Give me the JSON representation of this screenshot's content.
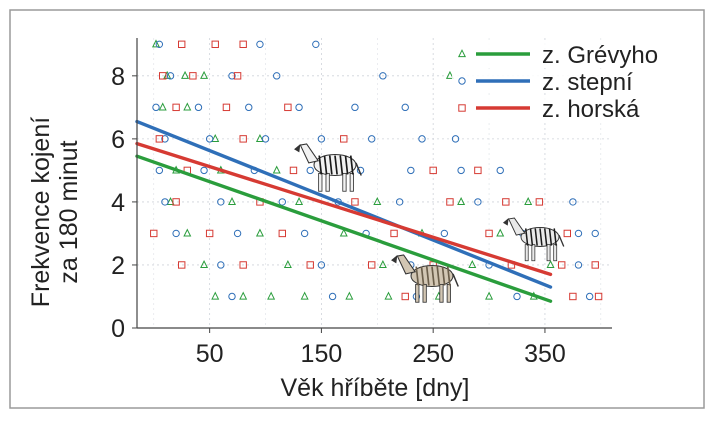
{
  "chart_data": {
    "type": "scatter",
    "title": "",
    "xlabel": "Věk hříběte [dny]",
    "ylabel_lines": [
      "Frekvence kojení",
      "za 180 minut"
    ],
    "xlim": [
      -15,
      410
    ],
    "ylim": [
      0,
      9.2
    ],
    "x_ticks": [
      50,
      150,
      250,
      350
    ],
    "y_ticks": [
      0,
      2,
      4,
      6,
      8
    ],
    "grid": true,
    "legend_position": "top-right",
    "series": [
      {
        "name": "z. Grévyho",
        "marker": "triangle",
        "color": "#2a9d3c",
        "trend": {
          "x": [
            -15,
            355
          ],
          "y": [
            5.45,
            0.85
          ]
        },
        "points": [
          {
            "x": 2,
            "y": 9
          },
          {
            "x": 12,
            "y": 8
          },
          {
            "x": 28,
            "y": 8
          },
          {
            "x": 45,
            "y": 8
          },
          {
            "x": 8,
            "y": 7
          },
          {
            "x": 30,
            "y": 7
          },
          {
            "x": 55,
            "y": 6
          },
          {
            "x": 95,
            "y": 6
          },
          {
            "x": 20,
            "y": 5
          },
          {
            "x": 60,
            "y": 5
          },
          {
            "x": 110,
            "y": 5
          },
          {
            "x": 160,
            "y": 5
          },
          {
            "x": 15,
            "y": 4
          },
          {
            "x": 70,
            "y": 4
          },
          {
            "x": 130,
            "y": 4
          },
          {
            "x": 200,
            "y": 4
          },
          {
            "x": 275,
            "y": 4
          },
          {
            "x": 335,
            "y": 4
          },
          {
            "x": 30,
            "y": 3
          },
          {
            "x": 95,
            "y": 3
          },
          {
            "x": 170,
            "y": 3
          },
          {
            "x": 240,
            "y": 3
          },
          {
            "x": 310,
            "y": 3
          },
          {
            "x": 45,
            "y": 2
          },
          {
            "x": 120,
            "y": 2
          },
          {
            "x": 205,
            "y": 2
          },
          {
            "x": 285,
            "y": 2
          },
          {
            "x": 355,
            "y": 2
          },
          {
            "x": 55,
            "y": 1
          },
          {
            "x": 80,
            "y": 1
          },
          {
            "x": 105,
            "y": 1
          },
          {
            "x": 135,
            "y": 1
          },
          {
            "x": 175,
            "y": 1
          },
          {
            "x": 210,
            "y": 1
          },
          {
            "x": 255,
            "y": 1
          },
          {
            "x": 300,
            "y": 1
          },
          {
            "x": 340,
            "y": 1
          },
          {
            "x": 265,
            "y": 8
          }
        ]
      },
      {
        "name": "z. stepní",
        "marker": "circle",
        "color": "#2f6fb8",
        "trend": {
          "x": [
            -15,
            355
          ],
          "y": [
            6.55,
            1.3
          ]
        },
        "points": [
          {
            "x": 5,
            "y": 9
          },
          {
            "x": 95,
            "y": 9
          },
          {
            "x": 145,
            "y": 9
          },
          {
            "x": 15,
            "y": 8
          },
          {
            "x": 70,
            "y": 8
          },
          {
            "x": 110,
            "y": 8
          },
          {
            "x": 205,
            "y": 8
          },
          {
            "x": 2,
            "y": 7
          },
          {
            "x": 40,
            "y": 7
          },
          {
            "x": 85,
            "y": 7
          },
          {
            "x": 130,
            "y": 7
          },
          {
            "x": 180,
            "y": 7
          },
          {
            "x": 225,
            "y": 7
          },
          {
            "x": 10,
            "y": 6
          },
          {
            "x": 50,
            "y": 6
          },
          {
            "x": 100,
            "y": 6
          },
          {
            "x": 150,
            "y": 6
          },
          {
            "x": 195,
            "y": 6
          },
          {
            "x": 240,
            "y": 6
          },
          {
            "x": 270,
            "y": 6
          },
          {
            "x": 5,
            "y": 5
          },
          {
            "x": 45,
            "y": 5
          },
          {
            "x": 90,
            "y": 5
          },
          {
            "x": 140,
            "y": 5
          },
          {
            "x": 185,
            "y": 5
          },
          {
            "x": 230,
            "y": 5
          },
          {
            "x": 275,
            "y": 5
          },
          {
            "x": 310,
            "y": 5
          },
          {
            "x": 10,
            "y": 4
          },
          {
            "x": 60,
            "y": 4
          },
          {
            "x": 115,
            "y": 4
          },
          {
            "x": 165,
            "y": 4
          },
          {
            "x": 220,
            "y": 4
          },
          {
            "x": 290,
            "y": 4
          },
          {
            "x": 375,
            "y": 4
          },
          {
            "x": 20,
            "y": 3
          },
          {
            "x": 75,
            "y": 3
          },
          {
            "x": 135,
            "y": 3
          },
          {
            "x": 190,
            "y": 3
          },
          {
            "x": 260,
            "y": 3
          },
          {
            "x": 330,
            "y": 3
          },
          {
            "x": 380,
            "y": 3
          },
          {
            "x": 395,
            "y": 3
          },
          {
            "x": 60,
            "y": 2
          },
          {
            "x": 150,
            "y": 2
          },
          {
            "x": 230,
            "y": 2
          },
          {
            "x": 300,
            "y": 2
          },
          {
            "x": 380,
            "y": 2
          },
          {
            "x": 70,
            "y": 1
          },
          {
            "x": 160,
            "y": 1
          },
          {
            "x": 235,
            "y": 1
          },
          {
            "x": 325,
            "y": 1
          },
          {
            "x": 390,
            "y": 1
          }
        ]
      },
      {
        "name": "z. horská",
        "marker": "square",
        "color": "#d63a33",
        "trend": {
          "x": [
            -15,
            355
          ],
          "y": [
            5.85,
            1.7
          ]
        },
        "points": [
          {
            "x": 25,
            "y": 9
          },
          {
            "x": 55,
            "y": 9
          },
          {
            "x": 80,
            "y": 9
          },
          {
            "x": 8,
            "y": 8
          },
          {
            "x": 35,
            "y": 8
          },
          {
            "x": 75,
            "y": 8
          },
          {
            "x": 20,
            "y": 7
          },
          {
            "x": 65,
            "y": 7
          },
          {
            "x": 120,
            "y": 7
          },
          {
            "x": 5,
            "y": 6
          },
          {
            "x": 80,
            "y": 6
          },
          {
            "x": 170,
            "y": 6
          },
          {
            "x": 30,
            "y": 5
          },
          {
            "x": 125,
            "y": 5
          },
          {
            "x": 250,
            "y": 5
          },
          {
            "x": 290,
            "y": 5
          },
          {
            "x": 20,
            "y": 4
          },
          {
            "x": 95,
            "y": 4
          },
          {
            "x": 180,
            "y": 4
          },
          {
            "x": 265,
            "y": 4
          },
          {
            "x": 315,
            "y": 4
          },
          {
            "x": 345,
            "y": 4
          },
          {
            "x": 0,
            "y": 3
          },
          {
            "x": 50,
            "y": 3
          },
          {
            "x": 115,
            "y": 3
          },
          {
            "x": 215,
            "y": 3
          },
          {
            "x": 300,
            "y": 3
          },
          {
            "x": 345,
            "y": 3
          },
          {
            "x": 370,
            "y": 3
          },
          {
            "x": 25,
            "y": 2
          },
          {
            "x": 80,
            "y": 2
          },
          {
            "x": 140,
            "y": 2
          },
          {
            "x": 195,
            "y": 2
          },
          {
            "x": 250,
            "y": 2
          },
          {
            "x": 320,
            "y": 2
          },
          {
            "x": 365,
            "y": 2
          },
          {
            "x": 395,
            "y": 2
          },
          {
            "x": 225,
            "y": 1
          },
          {
            "x": 375,
            "y": 1
          },
          {
            "x": 398,
            "y": 1
          }
        ]
      }
    ]
  }
}
